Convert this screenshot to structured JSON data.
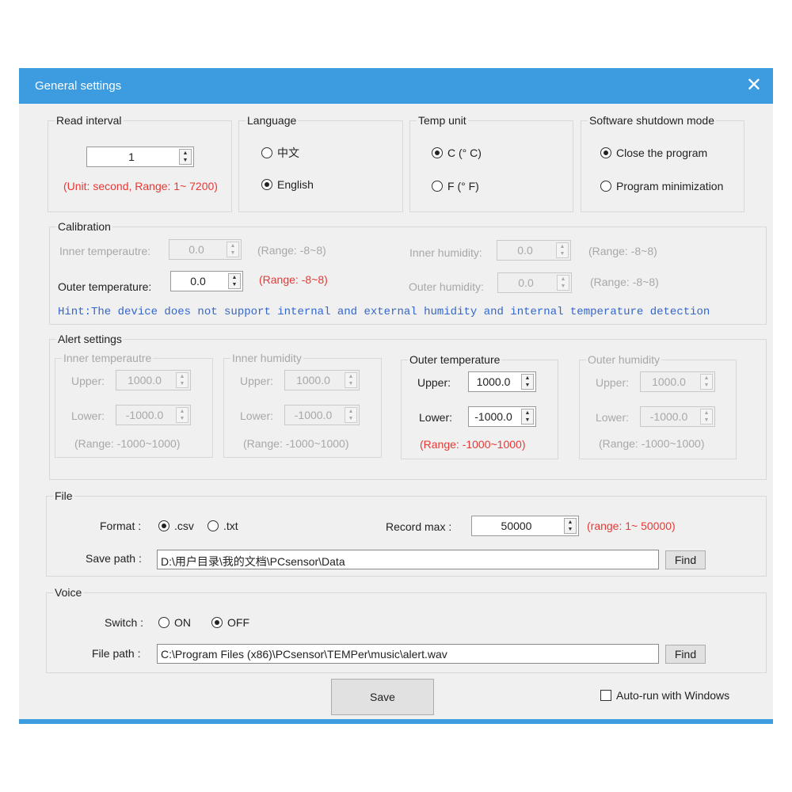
{
  "window": {
    "title": "General settings",
    "close_icon": "close-icon"
  },
  "read_interval": {
    "label": "Read interval",
    "value": "1",
    "hint": "(Unit: second, Range: 1~ 7200)"
  },
  "language": {
    "label": "Language",
    "options": [
      "中文",
      "English"
    ],
    "selected": "English"
  },
  "temp_unit": {
    "label": "Temp unit",
    "options": [
      "C (° C)",
      "F (° F)"
    ],
    "selected": "C (° C)"
  },
  "shutdown": {
    "label": "Software shutdown mode",
    "options": [
      "Close the program",
      "Program minimization"
    ],
    "selected": "Close the program"
  },
  "calibration": {
    "label": "Calibration",
    "inner_temp": {
      "label": "Inner temperautre:",
      "value": "0.0",
      "range": "(Range:  -8~8)"
    },
    "outer_temp": {
      "label": "Outer temperature:",
      "value": "0.0",
      "range": "(Range:  -8~8)"
    },
    "inner_hum": {
      "label": "Inner humidity:",
      "value": "0.0",
      "range": "(Range:  -8~8)"
    },
    "outer_hum": {
      "label": "Outer humidity:",
      "value": "0.0",
      "range": "(Range:  -8~8)"
    },
    "hint": "Hint:The device does not support internal and external humidity and internal temperature detection"
  },
  "alert": {
    "label": "Alert settings",
    "upper_label": "Upper:",
    "lower_label": "Lower:",
    "groups": [
      {
        "label": "Inner temperautre",
        "upper": "1000.0",
        "lower": "-1000.0",
        "range": "(Range:  -1000~1000)"
      },
      {
        "label": "Inner humidity",
        "upper": "1000.0",
        "lower": "-1000.0",
        "range": "(Range:  -1000~1000)"
      },
      {
        "label": "Outer temperature",
        "upper": "1000.0",
        "lower": "-1000.0",
        "range": "(Range:  -1000~1000)"
      },
      {
        "label": "Outer humidity",
        "upper": "1000.0",
        "lower": "-1000.0",
        "range": "(Range:  -1000~1000)"
      }
    ]
  },
  "file": {
    "label": "File",
    "format_label": "Format :",
    "formats": [
      ".csv",
      ".txt"
    ],
    "selected": ".csv",
    "record_max_label": "Record max :",
    "record_max": "50000",
    "record_range": "(range: 1~ 50000)",
    "save_path_label": "Save path :",
    "save_path": "D:\\用户目录\\我的文档\\PCsensor\\Data",
    "find": "Find"
  },
  "voice": {
    "label": "Voice",
    "switch_label": "Switch :",
    "options": [
      "ON",
      "OFF"
    ],
    "selected": "OFF",
    "file_path_label": "File path :",
    "file_path": "C:\\Program Files (x86)\\PCsensor\\TEMPer\\music\\alert.wav",
    "find": "Find"
  },
  "footer": {
    "save": "Save",
    "autorun": "Auto-run with Windows",
    "autorun_checked": false
  },
  "colors": {
    "titlebar": "#3d9be0",
    "hint_red": "#e53935",
    "hint_blue": "#3366cc"
  }
}
